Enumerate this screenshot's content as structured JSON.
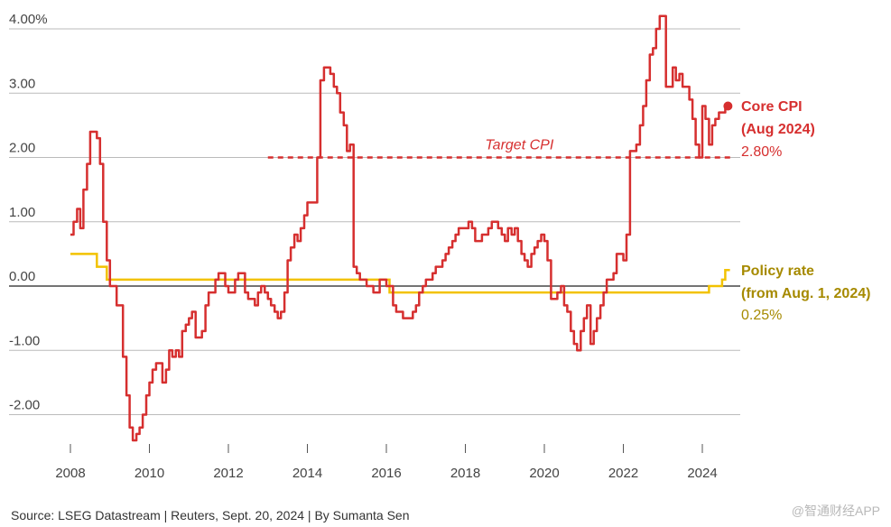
{
  "chart_data": {
    "type": "line",
    "ylim": [
      -2.5,
      4.2
    ],
    "xlim": [
      2007.6,
      2024.95
    ],
    "yticks": [
      -2,
      -1,
      0,
      1,
      2,
      3,
      4
    ],
    "ytick_labels": [
      "-2.00",
      "-1.00",
      "0.00",
      "1.00",
      "2.00",
      "3.00",
      "4.00%"
    ],
    "xticks": [
      2008,
      2010,
      2012,
      2014,
      2016,
      2018,
      2020,
      2022,
      2024
    ],
    "xtick_labels": [
      "2008",
      "2010",
      "2012",
      "2014",
      "2016",
      "2018",
      "2020",
      "2022",
      "2024"
    ],
    "colors": {
      "core_cpi": "#d62f2f",
      "policy_rate": "#f2c200",
      "policy_label": "#a68a00",
      "zero_line": "#222222",
      "grid": "#bbbbbb"
    },
    "target_cpi": {
      "label": "Target CPI",
      "value": 2.0,
      "x_start": 2013.0,
      "x_end": 2024.8
    },
    "series": [
      {
        "name": "Core CPI",
        "points": [
          [
            2008.0,
            0.8
          ],
          [
            2008.08,
            1.0
          ],
          [
            2008.17,
            1.2
          ],
          [
            2008.25,
            0.9
          ],
          [
            2008.33,
            1.5
          ],
          [
            2008.42,
            1.9
          ],
          [
            2008.5,
            2.4
          ],
          [
            2008.67,
            2.3
          ],
          [
            2008.75,
            1.9
          ],
          [
            2008.83,
            1.0
          ],
          [
            2008.92,
            0.4
          ],
          [
            2009.0,
            0.0
          ],
          [
            2009.17,
            -0.3
          ],
          [
            2009.33,
            -1.1
          ],
          [
            2009.42,
            -1.7
          ],
          [
            2009.5,
            -2.2
          ],
          [
            2009.58,
            -2.4
          ],
          [
            2009.67,
            -2.3
          ],
          [
            2009.75,
            -2.2
          ],
          [
            2009.83,
            -2.0
          ],
          [
            2009.92,
            -1.7
          ],
          [
            2010.0,
            -1.5
          ],
          [
            2010.08,
            -1.3
          ],
          [
            2010.17,
            -1.2
          ],
          [
            2010.33,
            -1.5
          ],
          [
            2010.42,
            -1.3
          ],
          [
            2010.5,
            -1.0
          ],
          [
            2010.58,
            -1.1
          ],
          [
            2010.67,
            -1.0
          ],
          [
            2010.75,
            -1.1
          ],
          [
            2010.83,
            -0.7
          ],
          [
            2010.92,
            -0.6
          ],
          [
            2011.0,
            -0.5
          ],
          [
            2011.08,
            -0.4
          ],
          [
            2011.17,
            -0.8
          ],
          [
            2011.33,
            -0.7
          ],
          [
            2011.42,
            -0.3
          ],
          [
            2011.5,
            -0.1
          ],
          [
            2011.67,
            0.1
          ],
          [
            2011.75,
            0.2
          ],
          [
            2011.92,
            0.0
          ],
          [
            2012.0,
            -0.1
          ],
          [
            2012.17,
            0.1
          ],
          [
            2012.25,
            0.2
          ],
          [
            2012.42,
            -0.1
          ],
          [
            2012.5,
            -0.2
          ],
          [
            2012.67,
            -0.3
          ],
          [
            2012.75,
            -0.1
          ],
          [
            2012.83,
            0.0
          ],
          [
            2012.92,
            -0.1
          ],
          [
            2013.0,
            -0.2
          ],
          [
            2013.08,
            -0.3
          ],
          [
            2013.17,
            -0.4
          ],
          [
            2013.25,
            -0.5
          ],
          [
            2013.33,
            -0.4
          ],
          [
            2013.42,
            -0.1
          ],
          [
            2013.5,
            0.4
          ],
          [
            2013.58,
            0.6
          ],
          [
            2013.67,
            0.8
          ],
          [
            2013.75,
            0.7
          ],
          [
            2013.83,
            0.9
          ],
          [
            2013.92,
            1.1
          ],
          [
            2014.0,
            1.3
          ],
          [
            2014.25,
            2.0
          ],
          [
            2014.33,
            3.2
          ],
          [
            2014.42,
            3.4
          ],
          [
            2014.58,
            3.3
          ],
          [
            2014.67,
            3.1
          ],
          [
            2014.75,
            3.0
          ],
          [
            2014.83,
            2.7
          ],
          [
            2014.92,
            2.5
          ],
          [
            2015.0,
            2.1
          ],
          [
            2015.08,
            2.2
          ],
          [
            2015.17,
            0.3
          ],
          [
            2015.25,
            0.2
          ],
          [
            2015.33,
            0.1
          ],
          [
            2015.5,
            0.0
          ],
          [
            2015.67,
            -0.1
          ],
          [
            2015.83,
            0.1
          ],
          [
            2016.0,
            0.0
          ],
          [
            2016.17,
            -0.3
          ],
          [
            2016.25,
            -0.4
          ],
          [
            2016.42,
            -0.5
          ],
          [
            2016.67,
            -0.4
          ],
          [
            2016.75,
            -0.3
          ],
          [
            2016.83,
            -0.1
          ],
          [
            2016.92,
            0.0
          ],
          [
            2017.0,
            0.1
          ],
          [
            2017.17,
            0.2
          ],
          [
            2017.25,
            0.3
          ],
          [
            2017.42,
            0.4
          ],
          [
            2017.5,
            0.5
          ],
          [
            2017.58,
            0.6
          ],
          [
            2017.67,
            0.7
          ],
          [
            2017.75,
            0.8
          ],
          [
            2017.83,
            0.9
          ],
          [
            2018.08,
            1.0
          ],
          [
            2018.17,
            0.9
          ],
          [
            2018.25,
            0.7
          ],
          [
            2018.42,
            0.8
          ],
          [
            2018.58,
            0.9
          ],
          [
            2018.67,
            1.0
          ],
          [
            2018.83,
            0.9
          ],
          [
            2018.92,
            0.8
          ],
          [
            2019.0,
            0.7
          ],
          [
            2019.08,
            0.9
          ],
          [
            2019.17,
            0.8
          ],
          [
            2019.25,
            0.9
          ],
          [
            2019.33,
            0.7
          ],
          [
            2019.42,
            0.5
          ],
          [
            2019.5,
            0.4
          ],
          [
            2019.58,
            0.3
          ],
          [
            2019.67,
            0.5
          ],
          [
            2019.75,
            0.6
          ],
          [
            2019.83,
            0.7
          ],
          [
            2019.92,
            0.8
          ],
          [
            2020.0,
            0.7
          ],
          [
            2020.08,
            0.4
          ],
          [
            2020.17,
            -0.2
          ],
          [
            2020.33,
            -0.1
          ],
          [
            2020.42,
            0.0
          ],
          [
            2020.5,
            -0.3
          ],
          [
            2020.58,
            -0.4
          ],
          [
            2020.67,
            -0.7
          ],
          [
            2020.75,
            -0.9
          ],
          [
            2020.83,
            -1.0
          ],
          [
            2020.92,
            -0.7
          ],
          [
            2021.0,
            -0.5
          ],
          [
            2021.08,
            -0.3
          ],
          [
            2021.17,
            -0.9
          ],
          [
            2021.25,
            -0.7
          ],
          [
            2021.33,
            -0.5
          ],
          [
            2021.42,
            -0.3
          ],
          [
            2021.5,
            -0.1
          ],
          [
            2021.58,
            0.1
          ],
          [
            2021.75,
            0.2
          ],
          [
            2021.83,
            0.5
          ],
          [
            2022.0,
            0.4
          ],
          [
            2022.08,
            0.8
          ],
          [
            2022.17,
            2.1
          ],
          [
            2022.33,
            2.2
          ],
          [
            2022.42,
            2.5
          ],
          [
            2022.5,
            2.8
          ],
          [
            2022.58,
            3.2
          ],
          [
            2022.67,
            3.6
          ],
          [
            2022.75,
            3.7
          ],
          [
            2022.83,
            4.0
          ],
          [
            2022.92,
            4.2
          ],
          [
            2023.0,
            4.2
          ],
          [
            2023.08,
            3.1
          ],
          [
            2023.25,
            3.4
          ],
          [
            2023.33,
            3.2
          ],
          [
            2023.42,
            3.3
          ],
          [
            2023.5,
            3.1
          ],
          [
            2023.67,
            2.9
          ],
          [
            2023.75,
            2.6
          ],
          [
            2023.83,
            2.2
          ],
          [
            2023.92,
            2.0
          ],
          [
            2024.0,
            2.8
          ],
          [
            2024.08,
            2.6
          ],
          [
            2024.17,
            2.2
          ],
          [
            2024.25,
            2.5
          ],
          [
            2024.33,
            2.6
          ],
          [
            2024.42,
            2.7
          ],
          [
            2024.5,
            2.7
          ],
          [
            2024.58,
            2.8
          ]
        ]
      },
      {
        "name": "Policy rate",
        "points": [
          [
            2008.0,
            0.5
          ],
          [
            2008.67,
            0.3
          ],
          [
            2008.92,
            0.1
          ],
          [
            2016.08,
            -0.1
          ],
          [
            2024.17,
            0.0
          ],
          [
            2024.5,
            0.1
          ],
          [
            2024.58,
            0.25
          ]
        ]
      }
    ],
    "labels": {
      "core_cpi": {
        "title_line1": "Core CPI",
        "title_line2": "(Aug 2024)",
        "value": "2.80%"
      },
      "policy_rate": {
        "title_line1": "Policy rate",
        "title_line2": "(from Aug. 1, 2024)",
        "value": "0.25%"
      }
    }
  },
  "footer": "Source: LSEG Datastream | Reuters, Sept. 20, 2024 | By Sumanta Sen",
  "watermark": "@智通财经APP"
}
